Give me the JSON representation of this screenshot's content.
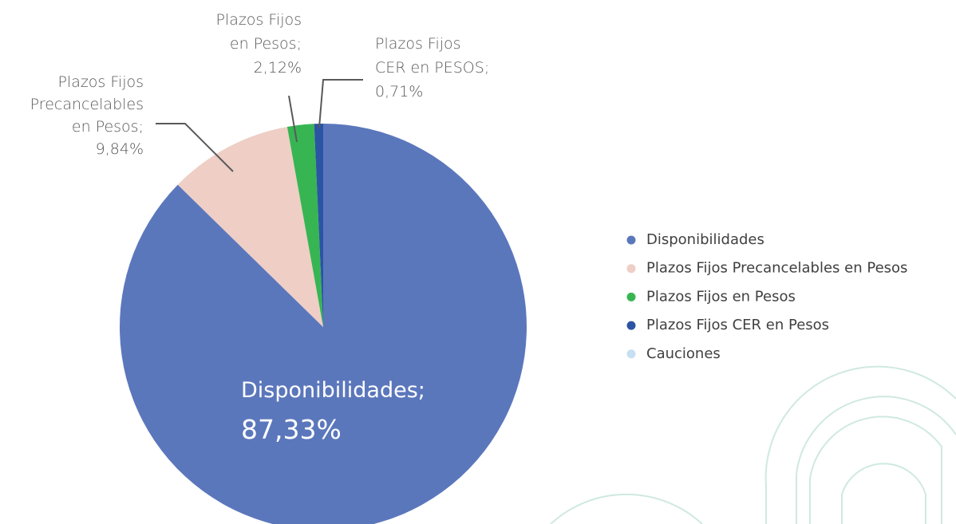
{
  "chart_data": {
    "type": "pie",
    "categories": [
      "Disponibilidades",
      "Plazos Fijos Precancelables en Pesos",
      "Plazos Fijos en Pesos",
      "Plazos Fijos CER en Pesos",
      "Cauciones"
    ],
    "values": [
      87.33,
      9.84,
      2.12,
      0.71,
      0
    ],
    "value_labels": [
      "87,33%",
      "9,84%",
      "2,12%",
      "0,71%",
      null
    ],
    "label_lines": [
      [
        "Disponibilidades;"
      ],
      [
        "Plazos Fijos",
        "Precancelables",
        "en Pesos;"
      ],
      [
        "Plazos Fijos",
        "en Pesos;"
      ],
      [
        "Plazos Fijos",
        "CER en PESOS;"
      ],
      null
    ],
    "colors": [
      "#5b77bc",
      "#eecec5",
      "#37b553",
      "#2b55a2",
      "#c7dff1"
    ],
    "legend": "right"
  }
}
